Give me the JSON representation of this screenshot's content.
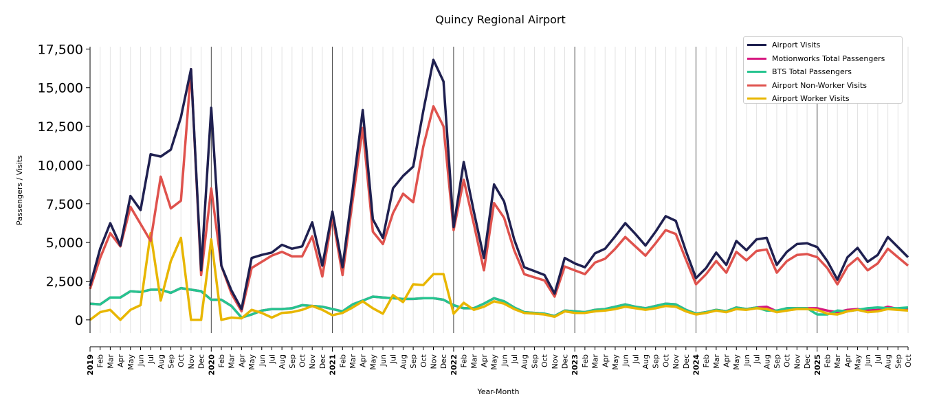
{
  "chart_data": {
    "type": "line",
    "title": "Quincy Regional Airport",
    "xlabel": "Year-Month",
    "ylabel": "Passengers / Visits",
    "ylim": [
      -850,
      17650
    ],
    "yticks": [
      0,
      2500,
      5000,
      7500,
      10000,
      12500,
      15000,
      17500
    ],
    "ytick_labels": [
      "0",
      "2,500",
      "5,000",
      "7,500",
      "10,000",
      "12,500",
      "15,000",
      "17,500"
    ],
    "years": [
      "2019",
      "2020",
      "2021",
      "2022",
      "2023",
      "2024",
      "2025"
    ],
    "months": [
      "Jan",
      "Feb",
      "Mar",
      "Apr",
      "May",
      "Jun",
      "Jul",
      "Aug",
      "Sep",
      "Oct",
      "Nov",
      "Dec"
    ],
    "start": "2019-01",
    "n_months": 82,
    "legend_position": "top-right",
    "series": [
      {
        "name": "Airport Visits",
        "color": "#1f2050",
        "values": [
          2200,
          4600,
          6250,
          4800,
          8000,
          7100,
          10700,
          10550,
          11000,
          13100,
          16200,
          3200,
          13700,
          3500,
          1900,
          700,
          4000,
          4200,
          4350,
          4850,
          4600,
          4750,
          6300,
          3500,
          7000,
          3400,
          8400,
          13550,
          6500,
          5300,
          8500,
          9300,
          9900,
          13500,
          16800,
          15400,
          6000,
          10200,
          7000,
          4000,
          8750,
          7650,
          5200,
          3400,
          3150,
          2900,
          1700,
          4000,
          3650,
          3400,
          4300,
          4600,
          5400,
          6250,
          5550,
          4800,
          5700,
          6700,
          6400,
          4450,
          2700,
          3350,
          4350,
          3550,
          5100,
          4500,
          5200,
          5300,
          3550,
          4400,
          4900,
          4950,
          4700,
          3800,
          2600,
          4050,
          4650,
          3750,
          4200,
          5350,
          4700,
          4050
        ]
      },
      {
        "name": "Motionworks Total Passengers",
        "color": "#d6177f",
        "values": [
          1050,
          1000,
          1450,
          1450,
          1850,
          1800,
          1950,
          1950,
          1750,
          2050,
          1950,
          1850,
          1300,
          1300,
          900,
          150,
          350,
          600,
          700,
          700,
          750,
          950,
          900,
          850,
          700,
          550,
          1000,
          1250,
          1500,
          1450,
          1400,
          1350,
          1350,
          1400,
          1400,
          1300,
          950,
          750,
          750,
          1050,
          1400,
          1200,
          800,
          500,
          450,
          400,
          250,
          600,
          550,
          500,
          650,
          700,
          850,
          1000,
          850,
          750,
          900,
          1050,
          1000,
          650,
          400,
          500,
          650,
          550,
          800,
          700,
          800,
          850,
          550,
          750,
          750,
          750,
          750,
          600,
          500,
          650,
          700,
          600,
          650,
          850,
          700,
          700
        ]
      },
      {
        "name": "BTS Total Passengers",
        "color": "#26c48f",
        "values": [
          1050,
          1000,
          1450,
          1450,
          1850,
          1800,
          1950,
          1950,
          1750,
          2050,
          1950,
          1850,
          1300,
          1300,
          900,
          150,
          350,
          600,
          700,
          700,
          750,
          950,
          900,
          850,
          700,
          550,
          1000,
          1250,
          1500,
          1450,
          1400,
          1350,
          1350,
          1400,
          1400,
          1300,
          950,
          750,
          750,
          1050,
          1400,
          1200,
          800,
          500,
          450,
          400,
          250,
          600,
          550,
          500,
          650,
          700,
          850,
          1000,
          850,
          750,
          900,
          1050,
          1000,
          650,
          400,
          500,
          650,
          550,
          800,
          700,
          800,
          600,
          600,
          750,
          750,
          750,
          350,
          350,
          600,
          550,
          650,
          750,
          800,
          750,
          750,
          800
        ]
      },
      {
        "name": "Airport Non-Worker Visits",
        "color": "#df524d",
        "values": [
          2000,
          4000,
          5600,
          4750,
          7300,
          6200,
          5100,
          9250,
          7200,
          7700,
          16200,
          2900,
          8500,
          3500,
          1700,
          550,
          3350,
          3750,
          4150,
          4400,
          4100,
          4100,
          5400,
          2800,
          6700,
          2900,
          7700,
          12400,
          5700,
          4900,
          6900,
          8150,
          7600,
          11200,
          13800,
          12500,
          5800,
          9050,
          6200,
          3200,
          7550,
          6600,
          4500,
          2950,
          2750,
          2550,
          1500,
          3450,
          3200,
          2950,
          3700,
          3950,
          4600,
          5350,
          4750,
          4150,
          4950,
          5800,
          5550,
          3900,
          2300,
          2950,
          3800,
          3050,
          4400,
          3850,
          4450,
          4550,
          3050,
          3800,
          4200,
          4250,
          4050,
          3350,
          2300,
          3450,
          4000,
          3200,
          3650,
          4600,
          4050,
          3500
        ]
      },
      {
        "name": "Airport Worker Visits",
        "color": "#e8b600",
        "values": [
          0,
          500,
          650,
          0,
          650,
          950,
          5600,
          1250,
          3800,
          5300,
          0,
          0,
          5200,
          0,
          150,
          100,
          650,
          450,
          150,
          450,
          500,
          650,
          900,
          650,
          300,
          450,
          800,
          1200,
          750,
          400,
          1600,
          1150,
          2300,
          2250,
          2950,
          2950,
          400,
          1100,
          650,
          850,
          1200,
          1050,
          700,
          450,
          400,
          350,
          200,
          550,
          450,
          450,
          550,
          600,
          700,
          850,
          750,
          650,
          750,
          900,
          850,
          550,
          350,
          450,
          600,
          500,
          700,
          650,
          750,
          700,
          500,
          600,
          700,
          700,
          650,
          400,
          350,
          550,
          650,
          500,
          550,
          700,
          650,
          600
        ]
      }
    ]
  }
}
